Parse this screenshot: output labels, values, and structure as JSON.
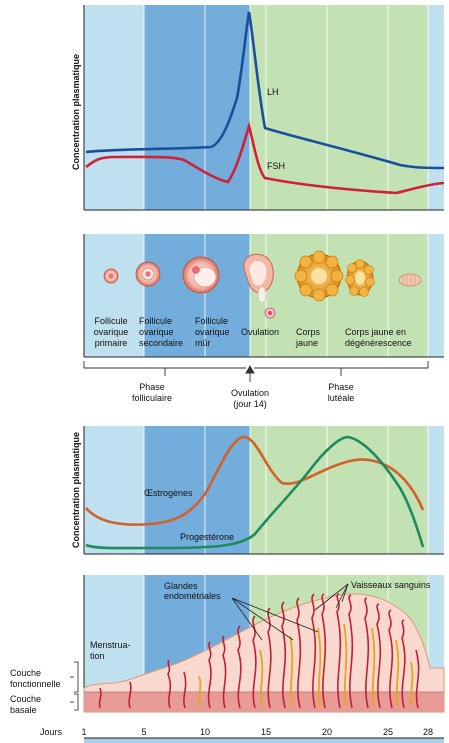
{
  "hormones_panel": {
    "y_axis_label": "Concentration plasmatique",
    "lh_label": "LH",
    "fsh_label": "FSH",
    "colors": {
      "lh": "#1a4f9c",
      "fsh": "#d0203a"
    }
  },
  "ovary_panel": {
    "stages": [
      {
        "line1": "Follicule",
        "line2": "ovarique",
        "line3": "primaire"
      },
      {
        "line1": "Follicule",
        "line2": "ovarique",
        "line3": "secondaire"
      },
      {
        "line1": "Follicule",
        "line2": "ovarique",
        "line3": "mûr"
      },
      {
        "line1": "Ovulation",
        "line2": "",
        "line3": ""
      },
      {
        "line1": "Corps",
        "line2": "jaune",
        "line3": ""
      },
      {
        "line1": "Corps jaune en",
        "line2": "dégénérescence",
        "line3": ""
      }
    ]
  },
  "phases": {
    "follicular": {
      "line1": "Phase",
      "line2": "folliculaire"
    },
    "ovulation": {
      "line1": "Ovulation",
      "line2": "(jour 14)"
    },
    "luteal": {
      "line1": "Phase",
      "line2": "lutéale"
    }
  },
  "steroids_panel": {
    "y_axis_label": "Concentration plasmatique",
    "estrogen_label": "Œstrogènes",
    "progesterone_label": "Progestérone",
    "colors": {
      "estrogen": "#d2602a",
      "progesterone": "#1f8a5a"
    }
  },
  "endometrium_panel": {
    "glands_label_line1": "Glandes",
    "glands_label_line2": "endométriales",
    "vessels_label": "Vaisseaux sanguins",
    "menstruation_line1": "Menstrua-",
    "menstruation_line2": "tion",
    "functional_layer_line1": "Couche",
    "functional_layer_line2": "fonctionnelle",
    "basal_layer_line1": "Couche",
    "basal_layer_line2": "basale"
  },
  "days_axis": {
    "label": "Jours",
    "ticks": [
      "1",
      "5",
      "10",
      "15",
      "20",
      "25",
      "28"
    ]
  },
  "background_colors": {
    "light_blue": "#bfe0ee",
    "mid_blue": "#73addb",
    "green": "#c3e2b4"
  }
}
